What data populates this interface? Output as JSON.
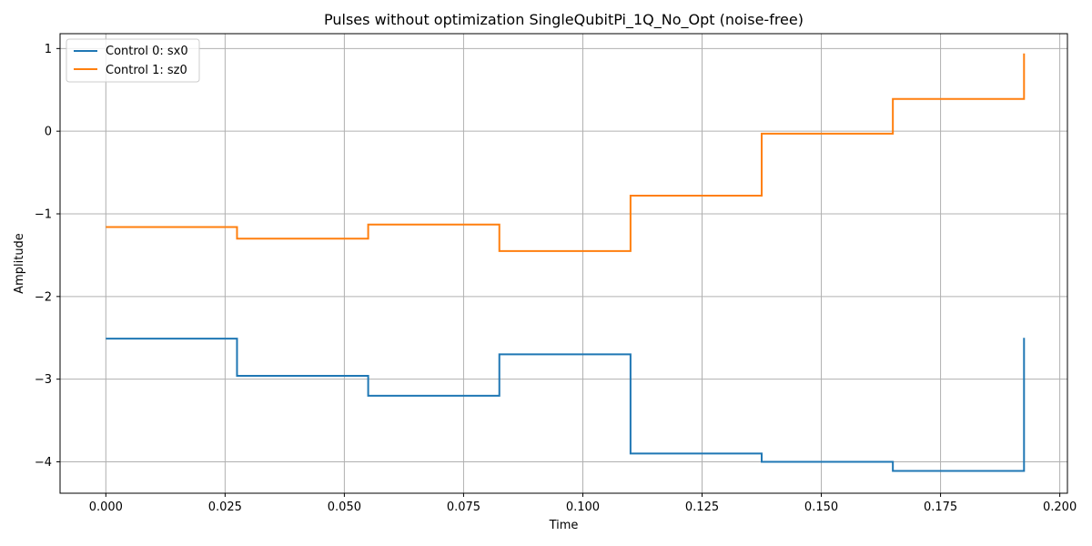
{
  "chart_data": {
    "type": "line",
    "step": "post",
    "title": "Pulses without optimization SingleQubitPi_1Q_No_Opt (noise-free)",
    "xlabel": "Time",
    "ylabel": "Amplitude",
    "xlim": [
      -0.0096,
      0.2016
    ],
    "ylim": [
      -4.38,
      1.18
    ],
    "xticks": [
      0.0,
      0.025,
      0.05,
      0.075,
      0.1,
      0.125,
      0.15,
      0.175,
      0.2
    ],
    "xtick_labels": [
      "0.000",
      "0.025",
      "0.050",
      "0.075",
      "0.100",
      "0.125",
      "0.150",
      "0.175",
      "0.200"
    ],
    "yticks": [
      1,
      0,
      -1,
      -2,
      -3,
      -4
    ],
    "ytick_labels": [
      "1",
      "0",
      "−1",
      "−2",
      "−3",
      "−4"
    ],
    "grid": true,
    "legend_position": "upper-left",
    "series": [
      {
        "name": "Control 0: sx0",
        "color": "#1f77b4",
        "x": [
          0.0,
          0.0275,
          0.055,
          0.0825,
          0.11,
          0.1375,
          0.165,
          0.1925
        ],
        "values": [
          -2.51,
          -2.96,
          -3.2,
          -2.7,
          -3.9,
          -4.0,
          -4.11,
          -2.5
        ]
      },
      {
        "name": "Control 1: sz0",
        "color": "#ff7f0e",
        "x": [
          0.0,
          0.0275,
          0.055,
          0.0825,
          0.11,
          0.1375,
          0.165,
          0.1925
        ],
        "values": [
          -1.16,
          -1.3,
          -1.13,
          -1.45,
          -0.78,
          -0.03,
          0.39,
          0.94
        ]
      }
    ]
  }
}
